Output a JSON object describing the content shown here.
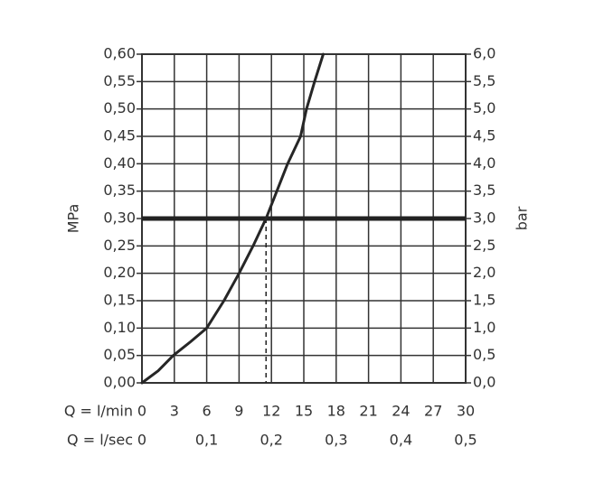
{
  "chart_data": {
    "type": "line",
    "ylabel": "MPa",
    "y2label": "bar",
    "xlabel": "Q = l/min",
    "x2label": "Q = l/sec",
    "series": [
      {
        "color": "#262626",
        "x": [
          0,
          1.5,
          2.9,
          4.5,
          6,
          7.6,
          9,
          10.3,
          11.5,
          12.5,
          13.5,
          14.7,
          15.25,
          16,
          16.8
        ],
        "values": [
          0,
          0.022,
          0.05,
          0.075,
          0.1,
          0.15,
          0.2,
          0.25,
          0.3,
          0.35,
          0.4,
          0.45,
          0.5,
          0.55,
          0.6
        ]
      }
    ],
    "hline": 0.3,
    "vline": 11.5,
    "xlim": [
      0,
      30
    ],
    "xticks": [
      0,
      3,
      6,
      9,
      12,
      15,
      18,
      21,
      24,
      27,
      30
    ],
    "x2lim": [
      0,
      0.5
    ],
    "x2ticks": [
      0,
      {
        "value": 0.1,
        "label": "0,1"
      },
      {
        "value": 0.2,
        "label": "0,2"
      },
      {
        "value": 0.3,
        "label": "0,3"
      },
      {
        "value": 0.4,
        "label": "0,4"
      },
      {
        "value": 0.5,
        "label": "0,5"
      }
    ],
    "ylim": [
      0,
      0.6
    ],
    "yticks": [
      {
        "value": 0,
        "label": "0,00"
      },
      {
        "value": 0.05,
        "label": "0,05"
      },
      {
        "value": 0.1,
        "label": "0,10"
      },
      {
        "value": 0.15,
        "label": "0,15"
      },
      {
        "value": 0.2,
        "label": "0,20"
      },
      {
        "value": 0.25,
        "label": "0,25"
      },
      {
        "value": 0.3,
        "label": "0,30"
      },
      {
        "value": 0.35,
        "label": "0,35"
      },
      {
        "value": 0.4,
        "label": "0,40"
      },
      {
        "value": 0.45,
        "label": "0,45"
      },
      {
        "value": 0.5,
        "label": "0,50"
      },
      {
        "value": 0.55,
        "label": "0,55"
      },
      {
        "value": 0.6,
        "label": "0,60"
      }
    ],
    "y2lim": [
      0,
      6
    ],
    "y2ticks": [
      {
        "value": 0,
        "label": "0,0"
      },
      {
        "value": 0.5,
        "label": "0,5"
      },
      {
        "value": 1,
        "label": "1,0"
      },
      {
        "value": 1.5,
        "label": "1,5"
      },
      {
        "value": 2,
        "label": "2,0"
      },
      {
        "value": 2.5,
        "label": "2,5"
      },
      {
        "value": 3,
        "label": "3,0"
      },
      {
        "value": 3.5,
        "label": "3,5"
      },
      {
        "value": 4,
        "label": "4,0"
      },
      {
        "value": 4.5,
        "label": "4,5"
      },
      {
        "value": 5,
        "label": "5,0"
      },
      {
        "value": 5.5,
        "label": "5,5"
      },
      {
        "value": 6,
        "label": "6,0"
      }
    ],
    "grid": true
  }
}
